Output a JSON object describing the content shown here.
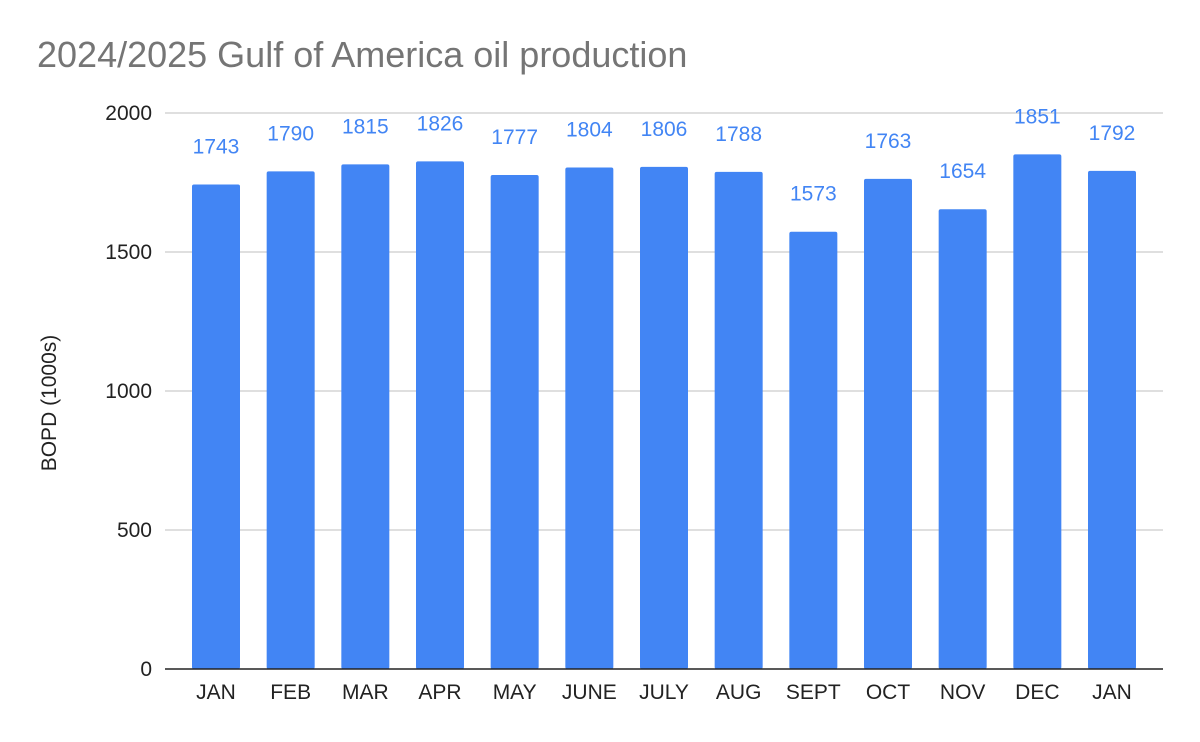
{
  "chart_data": {
    "type": "bar",
    "title": "2024/2025 Gulf of America oil production",
    "xlabel": "",
    "ylabel": "BOPD (1000s)",
    "categories": [
      "JAN",
      "FEB",
      "MAR",
      "APR",
      "MAY",
      "JUNE",
      "JULY",
      "AUG",
      "SEPT",
      "OCT",
      "NOV",
      "DEC",
      "JAN"
    ],
    "values": [
      1743,
      1790,
      1815,
      1826,
      1777,
      1804,
      1806,
      1788,
      1573,
      1763,
      1654,
      1851,
      1792
    ],
    "data_labels": [
      "1743",
      "1790",
      "1815",
      "1826",
      "1777",
      "1804",
      "1806",
      "1788",
      "1573",
      "1763",
      "1654",
      "1851",
      "1792"
    ],
    "ylim": [
      0,
      2000
    ],
    "yticks": [
      0,
      500,
      1000,
      1500,
      2000
    ],
    "ytick_labels": [
      "0",
      "500",
      "1000",
      "1500",
      "2000"
    ],
    "grid": true,
    "legend": "none",
    "bar_color": "#4285f4",
    "label_color": "#4285f4",
    "grid_color": "#cccccc",
    "axis_color": "#222222"
  }
}
